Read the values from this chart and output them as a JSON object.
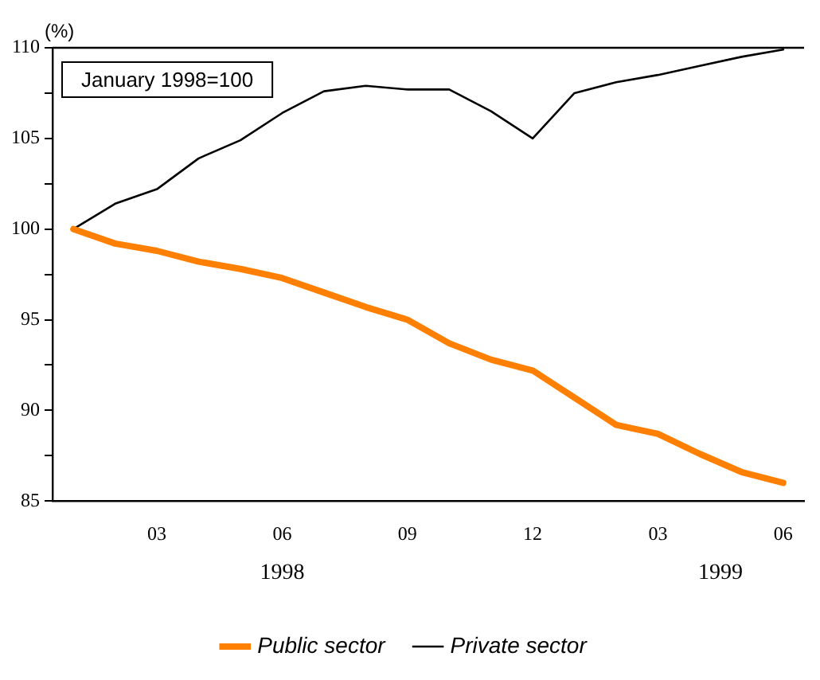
{
  "chart_data": {
    "type": "line",
    "ylabel": "(%)",
    "annotations": [
      "January 1998=100",
      "1998",
      "1999"
    ],
    "categories": [
      null,
      null,
      "03",
      null,
      null,
      "06",
      null,
      null,
      "09",
      null,
      null,
      "12",
      null,
      null,
      "03",
      null,
      null,
      "06"
    ],
    "series": [
      {
        "name": "Public sector",
        "color": "#ff8000",
        "values": [
          100,
          99.2,
          98.8,
          98.2,
          97.8,
          97.3,
          96.5,
          95.7,
          95.0,
          93.7,
          92.8,
          92.2,
          90.7,
          89.2,
          88.7,
          87.6,
          86.6,
          86.0
        ]
      },
      {
        "name": "Private sector",
        "color": "#000000",
        "values": [
          100,
          101.4,
          102.2,
          103.9,
          104.9,
          106.4,
          107.6,
          107.9,
          107.7,
          107.7,
          106.5,
          105.0,
          107.5,
          108.1,
          108.5,
          109.0,
          109.5,
          109.9
        ]
      }
    ],
    "ylim": [
      85,
      110
    ],
    "yticks": [
      85,
      {
        "value": 87.5,
        "label": null
      },
      90,
      {
        "value": 92.5,
        "label": null
      },
      95,
      {
        "value": 97.5,
        "label": null
      },
      100,
      {
        "value": 102.5,
        "label": null
      },
      105,
      {
        "value": 107.5,
        "label": null
      },
      110
    ],
    "grid": false,
    "legend": "bottom",
    "marker": "none",
    "line_style": "solid"
  }
}
